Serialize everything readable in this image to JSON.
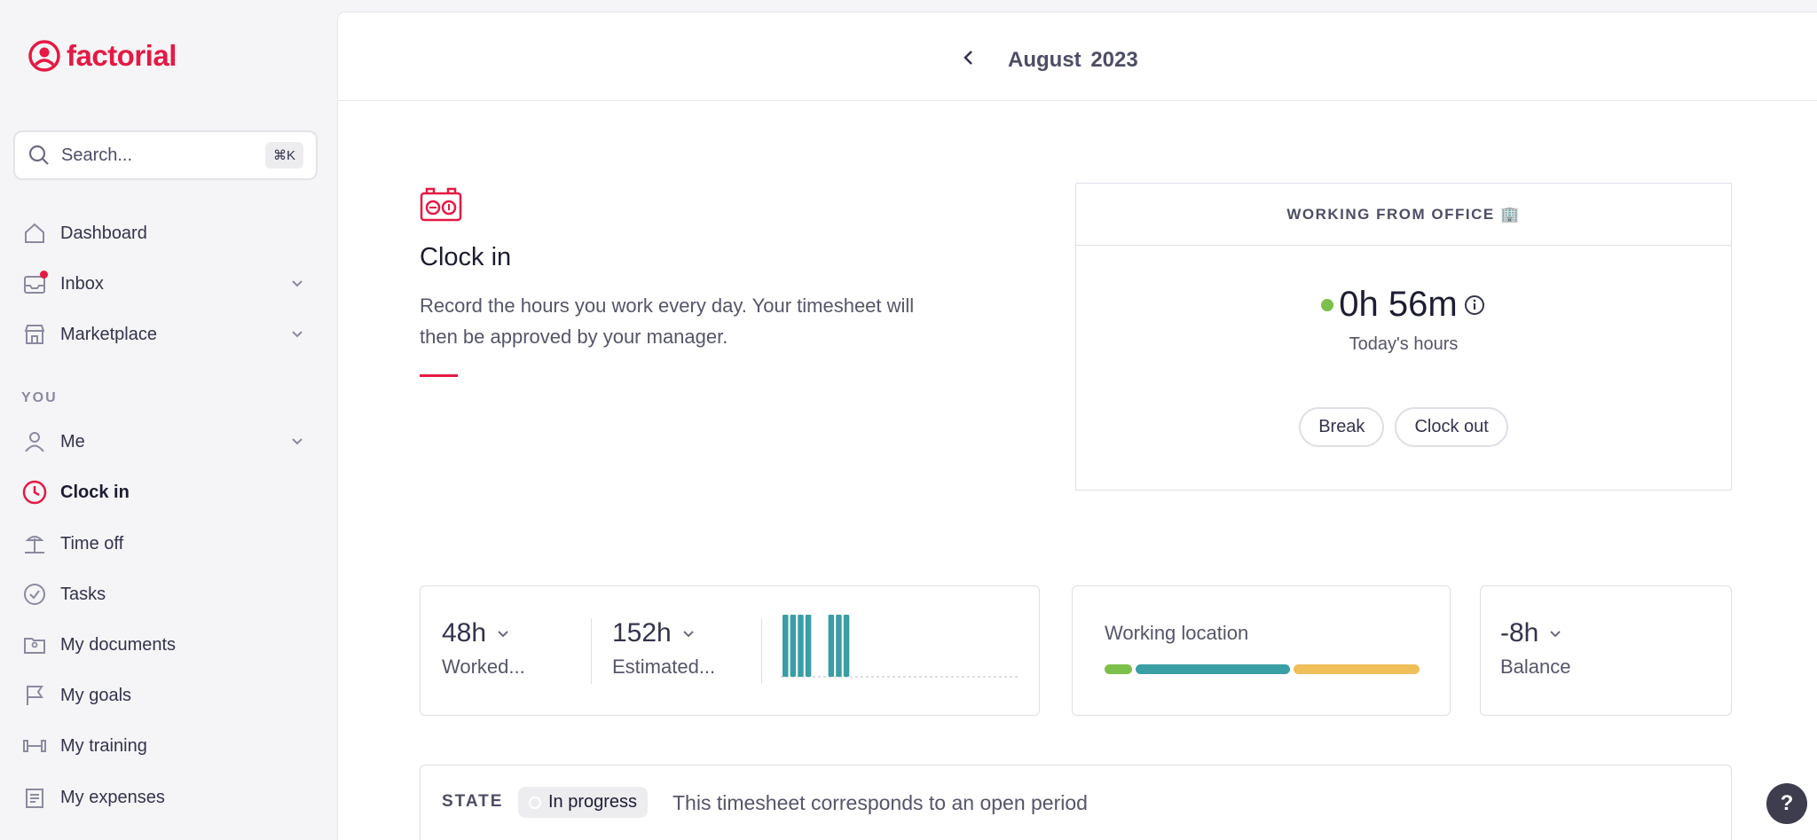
{
  "brand": {
    "name": "factorial",
    "color": "#e51943"
  },
  "search": {
    "placeholder": "Search...",
    "shortcut": "⌘K"
  },
  "sidebar": {
    "items": [
      {
        "label": "Dashboard",
        "icon": "home-icon"
      },
      {
        "label": "Inbox",
        "icon": "inbox-icon",
        "has_notification": true,
        "expandable": true
      },
      {
        "label": "Marketplace",
        "icon": "store-icon",
        "expandable": true
      }
    ],
    "section_you": "YOU",
    "you_items": [
      {
        "label": "Me",
        "icon": "user-icon",
        "expandable": true
      },
      {
        "label": "Clock in",
        "icon": "clock-icon",
        "active": true
      },
      {
        "label": "Time off",
        "icon": "beach-icon"
      },
      {
        "label": "Tasks",
        "icon": "check-circle-icon"
      },
      {
        "label": "My documents",
        "icon": "folder-user-icon"
      },
      {
        "label": "My goals",
        "icon": "flag-icon"
      },
      {
        "label": "My training",
        "icon": "dumbbell-icon"
      },
      {
        "label": "My expenses",
        "icon": "receipt-icon"
      }
    ]
  },
  "period": {
    "month": "August",
    "year": "2023"
  },
  "intro": {
    "title": "Clock in",
    "description": "Record the hours you work every day. Your timesheet will then be approved by your manager."
  },
  "office_card": {
    "heading": "WORKING FROM OFFICE 🏢",
    "hours": "0h 56m",
    "hours_label": "Today's hours",
    "break_label": "Break",
    "clock_out_label": "Clock out",
    "status_color": "#7cc04b"
  },
  "stats": {
    "worked_value": "48h",
    "worked_label": "Worked...",
    "estimated_value": "152h",
    "estimated_label": "Estimated...",
    "balance_value": "-8h",
    "balance_label": "Balance",
    "daily_bars": [
      1,
      1,
      1,
      1,
      0,
      0,
      1,
      1,
      1,
      0,
      0,
      0,
      0,
      0,
      0,
      0,
      0,
      0,
      0,
      0,
      0,
      0,
      0,
      0,
      0,
      0,
      0,
      0,
      0,
      0,
      0
    ]
  },
  "working_location": {
    "title": "Working location",
    "segments": [
      {
        "color": "#7cc04b",
        "share": 0.09
      },
      {
        "color": "#3a9ea5",
        "share": 0.5
      },
      {
        "color": "#f0bf5a",
        "share": 0.41
      }
    ]
  },
  "state": {
    "label": "STATE",
    "badge": "In progress",
    "text": "This timesheet corresponds to an open period"
  },
  "help_label": "?"
}
